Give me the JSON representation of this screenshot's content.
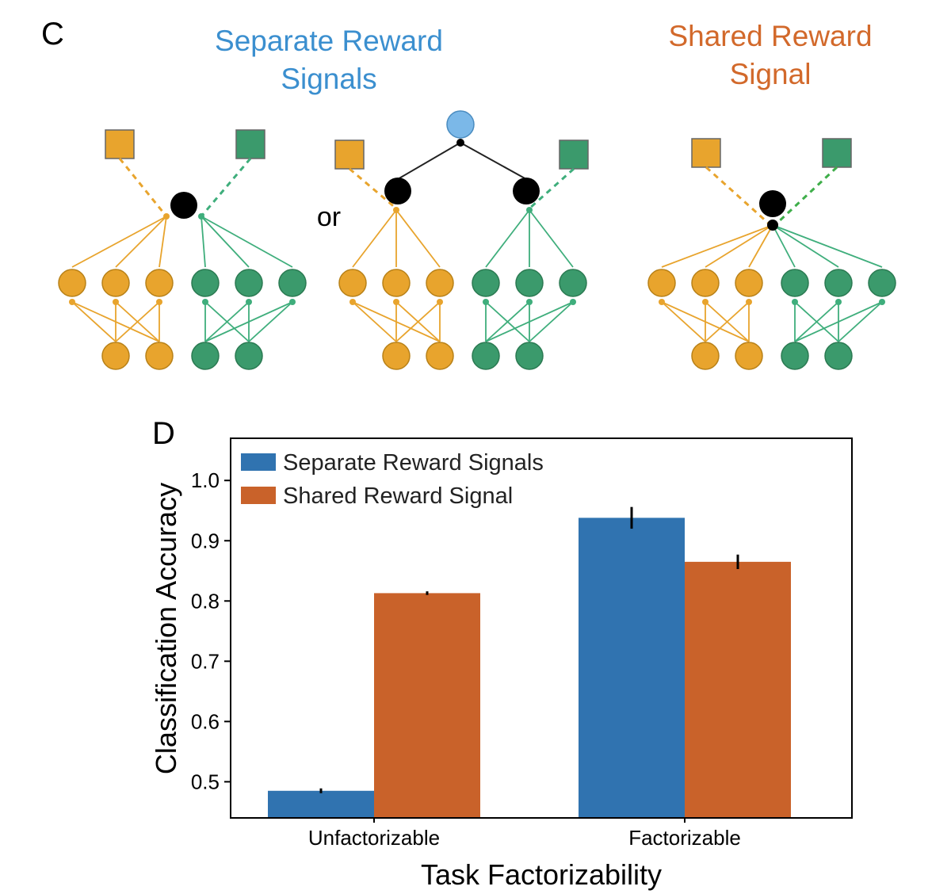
{
  "panel_c": {
    "label": "C",
    "title_separate": [
      "Separate Reward",
      "Signals"
    ],
    "title_shared": [
      "Shared Reward",
      "Signal"
    ],
    "or_text": "or",
    "colors": {
      "separate_title": "#3b8fcf",
      "shared_title": "#d2692b",
      "orange_node": "#e8a42d",
      "green_node": "#3b9a6c",
      "orange_edge": "#e8a42d",
      "green_edge": "#3fae7c",
      "reward_node": "#000000",
      "top_node": "#7bb8e8"
    }
  },
  "panel_d": {
    "label": "D"
  },
  "chart_data": {
    "type": "bar",
    "categories": [
      "Unfactorizable",
      "Factorizable"
    ],
    "series": [
      {
        "name": "Separate Reward Signals",
        "color": "#3073b0",
        "values": [
          0.485,
          0.938
        ],
        "errors": [
          0.004,
          0.018
        ]
      },
      {
        "name": "Shared Reward Signal",
        "color": "#c9622a",
        "values": [
          0.813,
          0.865
        ],
        "errors": [
          0.003,
          0.012
        ]
      }
    ],
    "xlabel": "Task Factorizability",
    "ylabel": "Classification Accuracy",
    "ylim": [
      0.44,
      1.07
    ],
    "yticks": [
      0.5,
      0.6,
      0.7,
      0.8,
      0.9,
      1.0
    ],
    "ytick_labels": [
      "0.5",
      "0.6",
      "0.7",
      "0.8",
      "0.9",
      "1.0"
    ],
    "legend_placement": "top-left",
    "grid": false
  }
}
